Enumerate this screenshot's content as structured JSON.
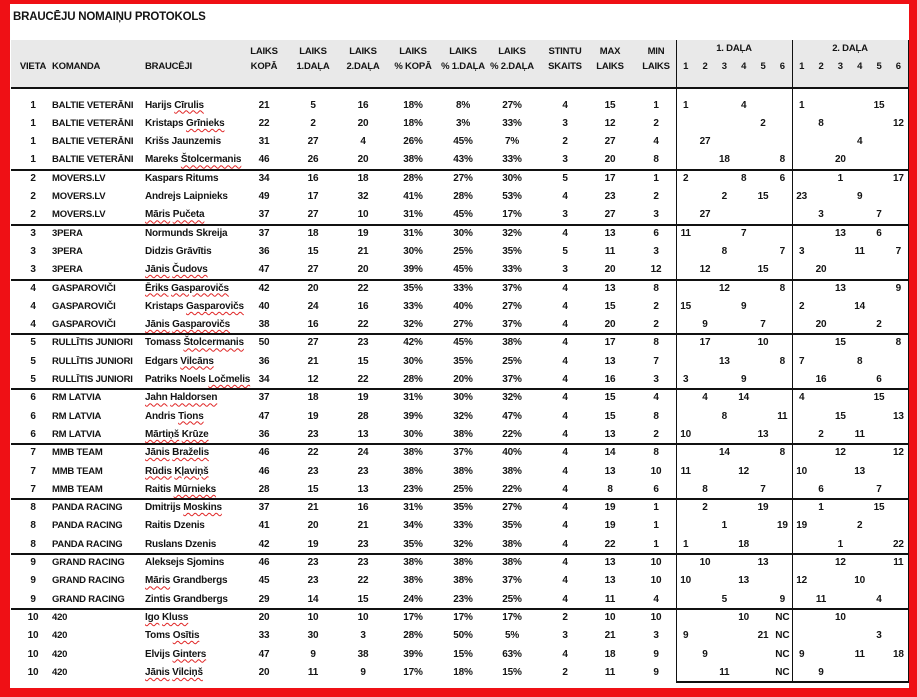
{
  "title": "BRAUCĒJU NOMAIŅU PROTOKOLS",
  "header": {
    "vieta": "VIETA",
    "komanda": "KOMANDA",
    "brauceji": "BRAUCĒJI",
    "stat_cols": [
      {
        "line1": "LAIKS",
        "line2": "KOPĀ"
      },
      {
        "line1": "LAIKS",
        "line2": "1.DAĻA"
      },
      {
        "line1": "LAIKS",
        "line2": "2.DAĻA"
      },
      {
        "line1": "LAIKS",
        "line2": "% KOPĀ"
      },
      {
        "line1": "LAIKS",
        "line2": "% 1.DAĻA"
      },
      {
        "line1": "LAIKS",
        "line2": "% 2.DAĻA"
      },
      {
        "line1": "STINTU",
        "line2": "SKAITS"
      },
      {
        "line1": "MAX",
        "line2": "LAIKS"
      },
      {
        "line1": "MIN",
        "line2": "LAIKS"
      }
    ],
    "dala1_label": "1. DAĻA",
    "dala2_label": "2. DAĻA",
    "stint_numbers": [
      "1",
      "2",
      "3",
      "4",
      "5",
      "6"
    ]
  },
  "colors": {
    "frame_red": "#ef1015",
    "header_band_gray": "#e9e9e9",
    "line_black": "#111111",
    "text": "#141414",
    "spellcheck_red": "#e02424"
  },
  "rows": [
    {
      "vieta": "1",
      "komanda": "BALTIE VETERĀNI",
      "name": "Harijs Cīrulis",
      "squiggle": "last",
      "stats": [
        "21",
        "5",
        "16",
        "18%",
        "8%",
        "27%",
        "4",
        "15",
        "1"
      ],
      "dala1": [
        "1",
        "",
        "",
        "4",
        "",
        ""
      ],
      "dala2": [
        "1",
        "",
        "",
        "",
        "15",
        ""
      ]
    },
    {
      "vieta": "1",
      "komanda": "BALTIE VETERĀNI",
      "name": "Kristaps Grīnieks",
      "squiggle": "last",
      "stats": [
        "22",
        "2",
        "20",
        "18%",
        "3%",
        "33%",
        "3",
        "12",
        "2"
      ],
      "dala1": [
        "",
        "",
        "",
        "",
        "2",
        ""
      ],
      "dala2": [
        "",
        "8",
        "",
        "",
        "",
        "12"
      ]
    },
    {
      "vieta": "1",
      "komanda": "BALTIE VETERĀNI",
      "name": "Krišs Jaunzemis",
      "squiggle": "none",
      "stats": [
        "31",
        "27",
        "4",
        "26%",
        "45%",
        "7%",
        "2",
        "27",
        "4"
      ],
      "dala1": [
        "",
        "27",
        "",
        "",
        "",
        ""
      ],
      "dala2": [
        "",
        "",
        "",
        "4",
        "",
        ""
      ]
    },
    {
      "vieta": "1",
      "komanda": "BALTIE VETERĀNI",
      "name": "Mareks Štolcermanis",
      "squiggle": "last",
      "stats": [
        "46",
        "26",
        "20",
        "38%",
        "43%",
        "33%",
        "3",
        "20",
        "8"
      ],
      "dala1": [
        "",
        "",
        "18",
        "",
        "",
        "8"
      ],
      "dala2": [
        "",
        "",
        "20",
        "",
        "",
        ""
      ]
    },
    {
      "vieta": "2",
      "komanda": "MOVERS.LV",
      "name": "Kaspars Ritums",
      "squiggle": "none",
      "stats": [
        "34",
        "16",
        "18",
        "28%",
        "27%",
        "30%",
        "5",
        "17",
        "1"
      ],
      "dala1": [
        "2",
        "",
        "",
        "8",
        "",
        "6"
      ],
      "dala2": [
        "",
        "",
        "1",
        "",
        "",
        "17"
      ]
    },
    {
      "vieta": "2",
      "komanda": "MOVERS.LV",
      "name": "Andrejs Laipnieks",
      "squiggle": "none",
      "stats": [
        "49",
        "17",
        "32",
        "41%",
        "28%",
        "53%",
        "4",
        "23",
        "2"
      ],
      "dala1": [
        "",
        "",
        "2",
        "",
        "15",
        ""
      ],
      "dala2": [
        "23",
        "",
        "",
        "9",
        "",
        ""
      ]
    },
    {
      "vieta": "2",
      "komanda": "MOVERS.LV",
      "name": "Māris Pučeta",
      "squiggle": "all",
      "stats": [
        "37",
        "27",
        "10",
        "31%",
        "45%",
        "17%",
        "3",
        "27",
        "3"
      ],
      "dala1": [
        "",
        "27",
        "",
        "",
        "",
        ""
      ],
      "dala2": [
        "",
        "3",
        "",
        "",
        "7",
        ""
      ]
    },
    {
      "vieta": "3",
      "komanda": "3PERA",
      "name": "Normunds Skreija",
      "squiggle": "none",
      "stats": [
        "37",
        "18",
        "19",
        "31%",
        "30%",
        "32%",
        "4",
        "13",
        "6"
      ],
      "dala1": [
        "11",
        "",
        "",
        "7",
        "",
        ""
      ],
      "dala2": [
        "",
        "",
        "13",
        "",
        "6",
        ""
      ]
    },
    {
      "vieta": "3",
      "komanda": "3PERA",
      "name": "Didzis Grāvītis",
      "squiggle": "none",
      "stats": [
        "36",
        "15",
        "21",
        "30%",
        "25%",
        "35%",
        "5",
        "11",
        "3"
      ],
      "dala1": [
        "",
        "",
        "8",
        "",
        "",
        "7"
      ],
      "dala2": [
        "3",
        "",
        "",
        "11",
        "",
        "7"
      ]
    },
    {
      "vieta": "3",
      "komanda": "3PERA",
      "name": "Jānis Čudovs",
      "squiggle": "all",
      "stats": [
        "47",
        "27",
        "20",
        "39%",
        "45%",
        "33%",
        "3",
        "20",
        "12"
      ],
      "dala1": [
        "",
        "12",
        "",
        "",
        "15",
        ""
      ],
      "dala2": [
        "",
        "20",
        "",
        "",
        "",
        ""
      ]
    },
    {
      "vieta": "4",
      "komanda": "GASPAROVIČI",
      "name": "Ēriks Gasparovičs",
      "squiggle": "all",
      "stats": [
        "42",
        "20",
        "22",
        "35%",
        "33%",
        "37%",
        "4",
        "13",
        "8"
      ],
      "dala1": [
        "",
        "",
        "12",
        "",
        "",
        "8"
      ],
      "dala2": [
        "",
        "",
        "13",
        "",
        "",
        "9"
      ]
    },
    {
      "vieta": "4",
      "komanda": "GASPAROVIČI",
      "name": "Kristaps Gasparovičs",
      "squiggle": "last",
      "stats": [
        "40",
        "24",
        "16",
        "33%",
        "40%",
        "27%",
        "4",
        "15",
        "2"
      ],
      "dala1": [
        "15",
        "",
        "",
        "9",
        "",
        ""
      ],
      "dala2": [
        "2",
        "",
        "",
        "14",
        "",
        ""
      ]
    },
    {
      "vieta": "4",
      "komanda": "GASPAROVIČI",
      "name": "Jānis Gasparovičs",
      "squiggle": "all",
      "stats": [
        "38",
        "16",
        "22",
        "32%",
        "27%",
        "37%",
        "4",
        "20",
        "2"
      ],
      "dala1": [
        "",
        "9",
        "",
        "",
        "7",
        ""
      ],
      "dala2": [
        "",
        "20",
        "",
        "",
        "2",
        ""
      ]
    },
    {
      "vieta": "5",
      "komanda": "RULLĪTIS JUNIORI",
      "name": "Tomass Štolcermanis",
      "squiggle": "last",
      "stats": [
        "50",
        "27",
        "23",
        "42%",
        "45%",
        "38%",
        "4",
        "17",
        "8"
      ],
      "dala1": [
        "",
        "17",
        "",
        "",
        "10",
        ""
      ],
      "dala2": [
        "",
        "",
        "15",
        "",
        "",
        "8"
      ]
    },
    {
      "vieta": "5",
      "komanda": "RULLĪTIS JUNIORI",
      "name": "Edgars Vilcāns",
      "squiggle": "last",
      "stats": [
        "36",
        "21",
        "15",
        "30%",
        "35%",
        "25%",
        "4",
        "13",
        "7"
      ],
      "dala1": [
        "",
        "",
        "13",
        "",
        "",
        "8"
      ],
      "dala2": [
        "7",
        "",
        "",
        "8",
        "",
        ""
      ]
    },
    {
      "vieta": "5",
      "komanda": "RULLĪTIS JUNIORI",
      "name": "Patriks Noels Ločmelis",
      "squiggle": "last",
      "stats": [
        "34",
        "12",
        "22",
        "28%",
        "20%",
        "37%",
        "4",
        "16",
        "3"
      ],
      "dala1": [
        "3",
        "",
        "",
        "9",
        "",
        ""
      ],
      "dala2": [
        "",
        "16",
        "",
        "",
        "6",
        ""
      ]
    },
    {
      "vieta": "6",
      "komanda": "RM LATVIA",
      "name": "Jahn Haldorsen",
      "squiggle": "all",
      "stats": [
        "37",
        "18",
        "19",
        "31%",
        "30%",
        "32%",
        "4",
        "15",
        "4"
      ],
      "dala1": [
        "",
        "4",
        "",
        "14",
        "",
        ""
      ],
      "dala2": [
        "4",
        "",
        "",
        "",
        "15",
        ""
      ]
    },
    {
      "vieta": "6",
      "komanda": "RM LATVIA",
      "name": "Andris Tions",
      "squiggle": "last",
      "stats": [
        "47",
        "19",
        "28",
        "39%",
        "32%",
        "47%",
        "4",
        "15",
        "8"
      ],
      "dala1": [
        "",
        "",
        "8",
        "",
        "",
        "11"
      ],
      "dala2": [
        "",
        "",
        "15",
        "",
        "",
        "13"
      ]
    },
    {
      "vieta": "6",
      "komanda": "RM LATVIA",
      "name": "Mārtiņš Krūze",
      "squiggle": "all",
      "stats": [
        "36",
        "23",
        "13",
        "30%",
        "38%",
        "22%",
        "4",
        "13",
        "2"
      ],
      "dala1": [
        "10",
        "",
        "",
        "",
        "13",
        ""
      ],
      "dala2": [
        "",
        "2",
        "",
        "11",
        "",
        ""
      ]
    },
    {
      "vieta": "7",
      "komanda": "MMB TEAM",
      "name": "Jānis Braželis",
      "squiggle": "all",
      "stats": [
        "46",
        "22",
        "24",
        "38%",
        "37%",
        "40%",
        "4",
        "14",
        "8"
      ],
      "dala1": [
        "",
        "",
        "14",
        "",
        "",
        "8"
      ],
      "dala2": [
        "",
        "",
        "12",
        "",
        "",
        "12"
      ]
    },
    {
      "vieta": "7",
      "komanda": "MMB TEAM",
      "name": "Rūdis Kļaviņš",
      "squiggle": "all",
      "stats": [
        "46",
        "23",
        "23",
        "38%",
        "38%",
        "38%",
        "4",
        "13",
        "10"
      ],
      "dala1": [
        "11",
        "",
        "",
        "12",
        "",
        ""
      ],
      "dala2": [
        "10",
        "",
        "",
        "13",
        "",
        ""
      ]
    },
    {
      "vieta": "7",
      "komanda": "MMB TEAM",
      "name": "Raitis Mūrnieks",
      "squiggle": "last",
      "stats": [
        "28",
        "15",
        "13",
        "23%",
        "25%",
        "22%",
        "4",
        "8",
        "6"
      ],
      "dala1": [
        "",
        "8",
        "",
        "",
        "7",
        ""
      ],
      "dala2": [
        "",
        "6",
        "",
        "",
        "7",
        ""
      ]
    },
    {
      "vieta": "8",
      "komanda": "PANDA RACING",
      "name": "Dmitrijs Moskins",
      "squiggle": "last",
      "stats": [
        "37",
        "21",
        "16",
        "31%",
        "35%",
        "27%",
        "4",
        "19",
        "1"
      ],
      "dala1": [
        "",
        "2",
        "",
        "",
        "19",
        ""
      ],
      "dala2": [
        "",
        "1",
        "",
        "",
        "15",
        ""
      ]
    },
    {
      "vieta": "8",
      "komanda": "PANDA RACING",
      "name": "Raitis Dzenis",
      "squiggle": "none",
      "stats": [
        "41",
        "20",
        "21",
        "34%",
        "33%",
        "35%",
        "4",
        "19",
        "1"
      ],
      "dala1": [
        "",
        "",
        "1",
        "",
        "",
        "19"
      ],
      "dala2": [
        "19",
        "",
        "",
        "2",
        "",
        ""
      ]
    },
    {
      "vieta": "8",
      "komanda": "PANDA RACING",
      "name": "Ruslans Dzenis",
      "squiggle": "none",
      "stats": [
        "42",
        "19",
        "23",
        "35%",
        "32%",
        "38%",
        "4",
        "22",
        "1"
      ],
      "dala1": [
        "1",
        "",
        "",
        "18",
        "",
        ""
      ],
      "dala2": [
        "",
        "",
        "1",
        "",
        "",
        "22"
      ]
    },
    {
      "vieta": "9",
      "komanda": "GRAND RACING",
      "name": "Aleksejs Sjomins",
      "squiggle": "none",
      "stats": [
        "46",
        "23",
        "23",
        "38%",
        "38%",
        "38%",
        "4",
        "13",
        "10"
      ],
      "dala1": [
        "",
        "10",
        "",
        "",
        "13",
        ""
      ],
      "dala2": [
        "",
        "",
        "12",
        "",
        "",
        "11"
      ]
    },
    {
      "vieta": "9",
      "komanda": "GRAND RACING",
      "name": "Māris Grandbergs",
      "squiggle": "first",
      "stats": [
        "45",
        "23",
        "22",
        "38%",
        "38%",
        "37%",
        "4",
        "13",
        "10"
      ],
      "dala1": [
        "10",
        "",
        "",
        "13",
        "",
        ""
      ],
      "dala2": [
        "12",
        "",
        "",
        "10",
        "",
        ""
      ]
    },
    {
      "vieta": "9",
      "komanda": "GRAND RACING",
      "name": "Zintis Grandbergs",
      "squiggle": "none",
      "stats": [
        "29",
        "14",
        "15",
        "24%",
        "23%",
        "25%",
        "4",
        "11",
        "4"
      ],
      "dala1": [
        "",
        "",
        "5",
        "",
        "",
        "9"
      ],
      "dala2": [
        "",
        "11",
        "",
        "",
        "4",
        ""
      ]
    },
    {
      "vieta": "10",
      "komanda": "420",
      "name": "Igo Kluss",
      "squiggle": "all",
      "stats": [
        "20",
        "10",
        "10",
        "17%",
        "17%",
        "17%",
        "2",
        "10",
        "10"
      ],
      "dala1": [
        "",
        "",
        "",
        "10",
        "",
        "NC"
      ],
      "dala2": [
        "",
        "",
        "10",
        "",
        "",
        ""
      ]
    },
    {
      "vieta": "10",
      "komanda": "420",
      "name": "Toms Osītis",
      "squiggle": "last",
      "stats": [
        "33",
        "30",
        "3",
        "28%",
        "50%",
        "5%",
        "3",
        "21",
        "3"
      ],
      "dala1": [
        "9",
        "",
        "",
        "",
        "21",
        "NC"
      ],
      "dala2": [
        "",
        "",
        "",
        "",
        "3",
        ""
      ]
    },
    {
      "vieta": "10",
      "komanda": "420",
      "name": "Elvijs Ginters",
      "squiggle": "last",
      "stats": [
        "47",
        "9",
        "38",
        "39%",
        "15%",
        "63%",
        "4",
        "18",
        "9"
      ],
      "dala1": [
        "",
        "9",
        "",
        "",
        "",
        "NC"
      ],
      "dala2": [
        "9",
        "",
        "",
        "11",
        "",
        "18"
      ]
    },
    {
      "vieta": "10",
      "komanda": "420",
      "name": "Jānis Vilciņš",
      "squiggle": "all",
      "stats": [
        "20",
        "11",
        "9",
        "17%",
        "18%",
        "15%",
        "2",
        "11",
        "9"
      ],
      "dala1": [
        "",
        "",
        "11",
        "",
        "",
        "NC"
      ],
      "dala2": [
        "",
        "9",
        "",
        "",
        "",
        ""
      ]
    }
  ]
}
